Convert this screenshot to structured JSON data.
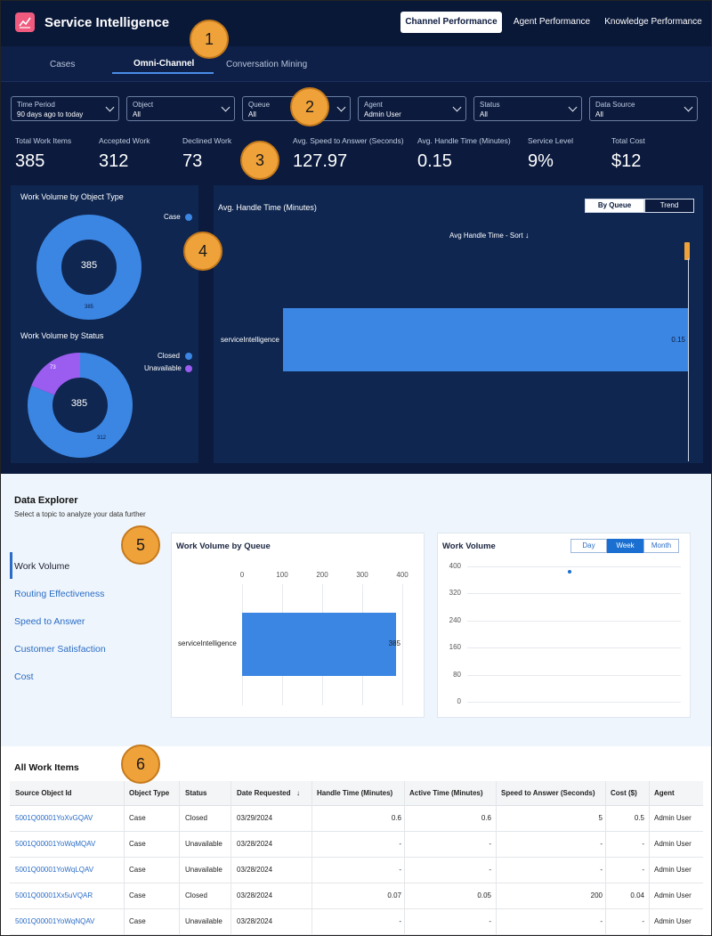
{
  "app": {
    "title": "Service Intelligence",
    "logo_icon": "chart-line-icon"
  },
  "top_nav": [
    "Channel Performance",
    "Agent Performance",
    "Knowledge Performance"
  ],
  "tabs": [
    "Cases",
    "Omni-Channel",
    "Conversation Mining"
  ],
  "filters": [
    {
      "label": "Time Period",
      "value": "90 days ago to today"
    },
    {
      "label": "Object",
      "value": "All"
    },
    {
      "label": "Queue",
      "value": "All"
    },
    {
      "label": "Agent",
      "value": "Admin User"
    },
    {
      "label": "Status",
      "value": "All"
    },
    {
      "label": "Data Source",
      "value": "All"
    }
  ],
  "kpis": [
    {
      "label": "Total Work Items",
      "value": "385"
    },
    {
      "label": "Accepted Work",
      "value": "312"
    },
    {
      "label": "Declined Work",
      "value": "73"
    },
    {
      "label": "Avg. Speed to Answer (Seconds)",
      "value": "127.97"
    },
    {
      "label": "Avg. Handle Time (Minutes)",
      "value": "0.15"
    },
    {
      "label": "Service Level",
      "value": "9%"
    },
    {
      "label": "Total Cost",
      "value": "$12"
    }
  ],
  "callouts": [
    "1",
    "2",
    "3",
    "4",
    "5",
    "6"
  ],
  "donut_object": {
    "title": "Work Volume by Object Type",
    "center": "385",
    "legend": [
      {
        "name": "Case",
        "color": "#3b86e3"
      }
    ],
    "slice_label": "385"
  },
  "donut_status": {
    "title": "Work Volume by Status",
    "center": "385",
    "legend": [
      {
        "name": "Closed",
        "color": "#3b86e3"
      },
      {
        "name": "Unavailable",
        "color": "#9b5cf0"
      }
    ],
    "slice_labels": [
      "73",
      "312"
    ]
  },
  "handle_time": {
    "title": "Avg. Handle Time (Minutes)",
    "toggle": [
      "By Queue",
      "Trend"
    ],
    "sort_label": "Avg Handle Time - Sort",
    "sort_icon": "arrow-down-icon",
    "category": "serviceIntelligence",
    "value_label": "0.15"
  },
  "explorer": {
    "title": "Data Explorer",
    "subtitle": "Select a topic to analyze your data further",
    "topics": [
      "Work Volume",
      "Routing Effectiveness",
      "Speed to Answer",
      "Customer Satisfaction",
      "Cost"
    ]
  },
  "queue_chart": {
    "title": "Work Volume by Queue",
    "ticks": [
      "0",
      "100",
      "200",
      "300",
      "400"
    ],
    "category": "serviceIntelligence",
    "value_label": "385"
  },
  "trend_chart": {
    "title": "Work Volume",
    "toggle": [
      "Day",
      "Week",
      "Month"
    ],
    "ticks": [
      "400",
      "320",
      "240",
      "160",
      "80",
      "0"
    ]
  },
  "chart_data": [
    {
      "type": "pie",
      "title": "Work Volume by Object Type",
      "labels": [
        "Case"
      ],
      "values": [
        385
      ]
    },
    {
      "type": "pie",
      "title": "Work Volume by Status",
      "labels": [
        "Closed",
        "Unavailable"
      ],
      "values": [
        312,
        73
      ]
    },
    {
      "type": "bar",
      "title": "Avg. Handle Time (Minutes)",
      "categories": [
        "serviceIntelligence"
      ],
      "values": [
        0.15
      ]
    },
    {
      "type": "bar",
      "title": "Work Volume by Queue",
      "categories": [
        "serviceIntelligence"
      ],
      "values": [
        385
      ],
      "xlim": [
        0,
        400
      ]
    },
    {
      "type": "scatter",
      "title": "Work Volume",
      "values": [
        385
      ],
      "ylim": [
        0,
        400
      ]
    }
  ],
  "table": {
    "title": "All Work Items",
    "sort_icon": "arrow-down-icon",
    "headers": [
      "Source Object Id",
      "Object Type",
      "Status",
      "Date Requested",
      "Handle Time (Minutes)",
      "Active Time (Minutes)",
      "Speed to Answer (Seconds)",
      "Cost ($)",
      "Agent"
    ],
    "rows": [
      [
        "5001Q00001YoXvGQAV",
        "Case",
        "Closed",
        "03/29/2024",
        "0.6",
        "0.6",
        "5",
        "0.5",
        "Admin User"
      ],
      [
        "5001Q00001YoWqMQAV",
        "Case",
        "Unavailable",
        "03/28/2024",
        "-",
        "-",
        "-",
        "-",
        "Admin User"
      ],
      [
        "5001Q00001YoWqLQAV",
        "Case",
        "Unavailable",
        "03/28/2024",
        "-",
        "-",
        "-",
        "-",
        "Admin User"
      ],
      [
        "5001Q00001Xx5uVQAR",
        "Case",
        "Closed",
        "03/28/2024",
        "0.07",
        "0.05",
        "200",
        "0.04",
        "Admin User"
      ],
      [
        "5001Q00001YoWqNQAV",
        "Case",
        "Unavailable",
        "03/28/2024",
        "-",
        "-",
        "-",
        "-",
        "Admin User"
      ]
    ]
  }
}
